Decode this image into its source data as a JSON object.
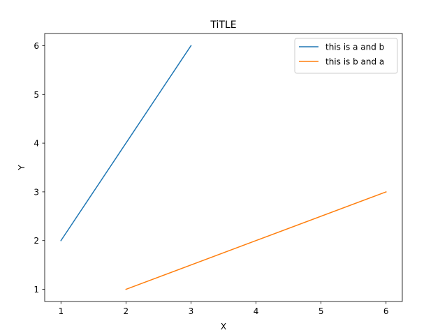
{
  "chart_data": {
    "type": "line",
    "title": "TiTLE",
    "xlabel": "X",
    "ylabel": "Y",
    "xlim": [
      0.75,
      6.25
    ],
    "ylim": [
      0.75,
      6.25
    ],
    "x_ticks": [
      1,
      2,
      3,
      4,
      5,
      6
    ],
    "y_ticks": [
      1,
      2,
      3,
      4,
      5,
      6
    ],
    "grid": false,
    "legend_position": "top-right",
    "series": [
      {
        "name": "this is a and b",
        "color": "#1f77b4",
        "x": [
          1,
          2,
          3
        ],
        "y": [
          2,
          4,
          6
        ]
      },
      {
        "name": "this is b and a",
        "color": "#ff7f0e",
        "x": [
          2,
          4,
          6
        ],
        "y": [
          1,
          2,
          3
        ]
      }
    ]
  }
}
